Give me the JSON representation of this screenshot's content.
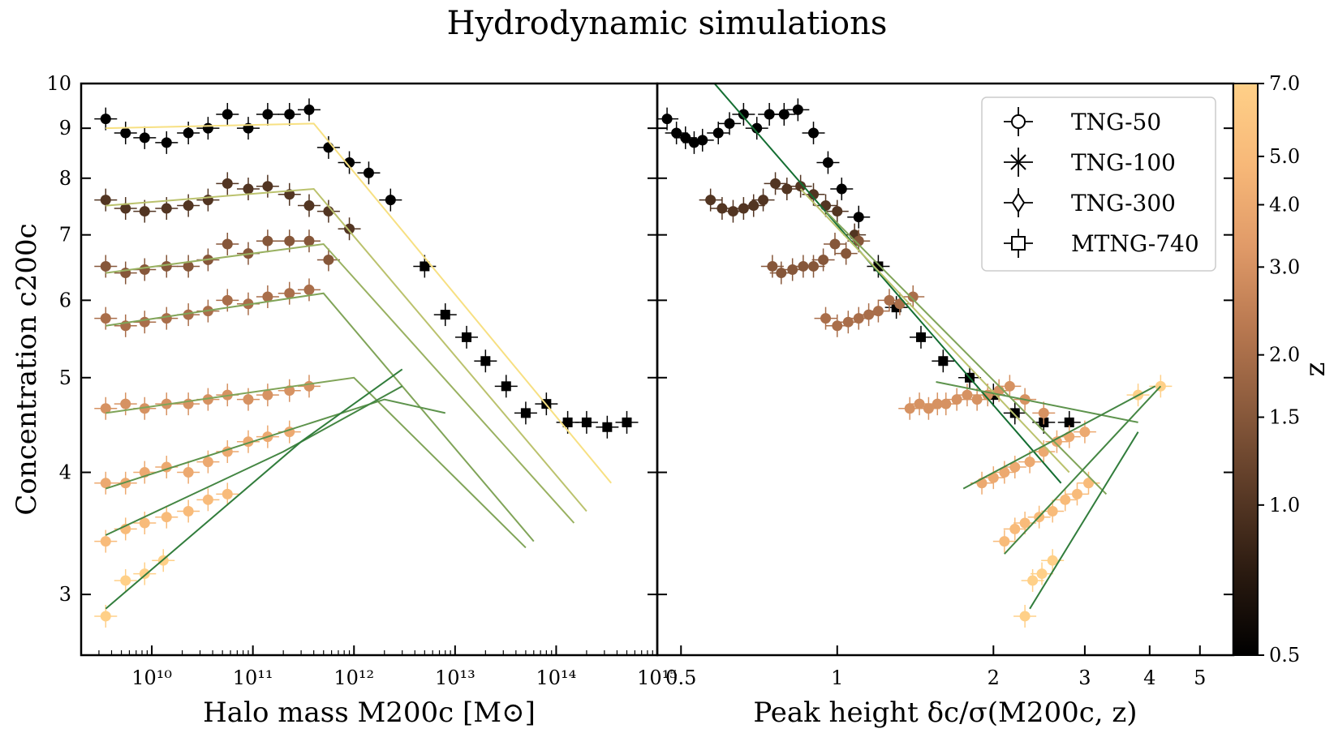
{
  "figure": {
    "title": "Hydrodynamic simulations",
    "colormap_stops": [
      "#000000",
      "#2a1a10",
      "#5a3a26",
      "#8a5a3c",
      "#b87850",
      "#e09a68",
      "#f7b878",
      "#ffd088"
    ]
  },
  "chart_data": [
    {
      "type": "scatter",
      "panel": "left",
      "xlabel": "Halo mass  M200c [M⊙]",
      "ylabel": "Concentration  c200c",
      "xscale": "log",
      "yscale": "log",
      "xlim": [
        2000000000.0,
        1000000000000000.0
      ],
      "ylim": [
        2.6,
        10
      ],
      "xtick_labels": [
        "10¹⁰",
        "10¹¹",
        "10¹²",
        "10¹³",
        "10¹⁴",
        "10¹⁵"
      ],
      "ytick_labels": [
        "3",
        "4",
        "5",
        "6",
        "7",
        "8",
        "9",
        "10"
      ],
      "series": [
        {
          "z": 0.5,
          "marker": "circle",
          "x": [
            3500000000.0,
            5500000000.0,
            8500000000.0,
            14000000000.0,
            23000000000.0,
            36000000000.0,
            56000000000.0,
            90000000000.0,
            140000000000.0,
            230000000000.0,
            360000000000.0,
            560000000000.0,
            900000000000.0,
            1400000000000.0,
            2300000000000.0
          ],
          "y": [
            9.2,
            8.9,
            8.8,
            8.7,
            8.9,
            9.0,
            9.3,
            9.0,
            9.3,
            9.3,
            9.4,
            8.6,
            8.3,
            8.1,
            7.6
          ]
        },
        {
          "z": 0.5,
          "marker": "square",
          "x": [
            5000000000000.0,
            8000000000000.0,
            13000000000000.0,
            20000000000000.0,
            32000000000000.0,
            50000000000000.0,
            80000000000000.0,
            130000000000000.0,
            200000000000000.0,
            320000000000000.0,
            500000000000000.0
          ],
          "y": [
            6.5,
            5.8,
            5.5,
            5.2,
            4.9,
            4.6,
            4.7,
            4.5,
            4.5,
            4.45,
            4.5
          ]
        },
        {
          "z": 1.0,
          "marker": "circle",
          "x": [
            3500000000.0,
            5500000000.0,
            8500000000.0,
            14000000000.0,
            23000000000.0,
            36000000000.0,
            56000000000.0,
            90000000000.0,
            140000000000.0,
            230000000000.0,
            360000000000.0,
            560000000000.0,
            900000000000.0
          ],
          "y": [
            7.6,
            7.45,
            7.4,
            7.45,
            7.5,
            7.6,
            7.9,
            7.8,
            7.85,
            7.7,
            7.5,
            7.4,
            7.1
          ]
        },
        {
          "z": 1.5,
          "marker": "circle",
          "x": [
            3500000000.0,
            5500000000.0,
            8500000000.0,
            14000000000.0,
            23000000000.0,
            36000000000.0,
            56000000000.0,
            90000000000.0,
            140000000000.0,
            230000000000.0,
            360000000000.0,
            560000000000.0
          ],
          "y": [
            6.5,
            6.4,
            6.45,
            6.5,
            6.5,
            6.6,
            6.85,
            6.7,
            6.9,
            6.9,
            6.9,
            6.6
          ]
        },
        {
          "z": 2.0,
          "marker": "circle",
          "x": [
            3500000000.0,
            5500000000.0,
            8500000000.0,
            14000000000.0,
            23000000000.0,
            36000000000.0,
            56000000000.0,
            90000000000.0,
            140000000000.0,
            230000000000.0,
            360000000000.0
          ],
          "y": [
            5.75,
            5.65,
            5.7,
            5.75,
            5.8,
            5.85,
            6.0,
            5.95,
            6.05,
            6.1,
            6.15
          ]
        },
        {
          "z": 3.0,
          "marker": "circle",
          "x": [
            3500000000.0,
            5500000000.0,
            8500000000.0,
            14000000000.0,
            23000000000.0,
            36000000000.0,
            56000000000.0,
            90000000000.0,
            140000000000.0,
            230000000000.0,
            360000000000.0
          ],
          "y": [
            4.65,
            4.7,
            4.65,
            4.7,
            4.7,
            4.75,
            4.8,
            4.75,
            4.8,
            4.85,
            4.9
          ]
        },
        {
          "z": 4.0,
          "marker": "circle",
          "x": [
            3500000000.0,
            5500000000.0,
            8500000000.0,
            14000000000.0,
            23000000000.0,
            36000000000.0,
            56000000000.0,
            90000000000.0,
            140000000000.0,
            230000000000.0
          ],
          "y": [
            3.9,
            3.9,
            4.0,
            4.05,
            4.0,
            4.1,
            4.2,
            4.3,
            4.35,
            4.4
          ]
        },
        {
          "z": 5.0,
          "marker": "circle",
          "x": [
            3500000000.0,
            5500000000.0,
            8500000000.0,
            14000000000.0,
            23000000000.0,
            36000000000.0,
            56000000000.0
          ],
          "y": [
            3.4,
            3.5,
            3.55,
            3.6,
            3.65,
            3.75,
            3.8
          ]
        },
        {
          "z": 7.0,
          "marker": "circle",
          "x": [
            3500000000.0,
            5500000000.0,
            8500000000.0,
            13000000000.0
          ],
          "y": [
            2.85,
            3.1,
            3.15,
            3.25
          ]
        }
      ],
      "model_lines": [
        {
          "z": 0.5,
          "x": [
            3500000000.0,
            400000000000.0,
            350000000000000.0
          ],
          "y": [
            9.0,
            9.1,
            3.9
          ]
        },
        {
          "z": 1.0,
          "x": [
            3500000000.0,
            400000000000.0,
            200000000000000.0
          ],
          "y": [
            7.5,
            7.8,
            3.65
          ]
        },
        {
          "z": 1.5,
          "x": [
            3500000000.0,
            500000000000.0,
            150000000000000.0
          ],
          "y": [
            6.4,
            6.85,
            3.55
          ]
        },
        {
          "z": 2.0,
          "x": [
            3500000000.0,
            500000000000.0,
            60000000000000.0
          ],
          "y": [
            5.65,
            6.1,
            3.4
          ]
        },
        {
          "z": 2.0,
          "x": [
            3500000000.0,
            1000000000000.0,
            50000000000000.0
          ],
          "y": [
            4.6,
            5.0,
            3.35
          ]
        },
        {
          "z": 3.0,
          "x": [
            3500000000.0,
            2000000000000.0,
            8000000000000.0
          ],
          "y": [
            3.85,
            4.75,
            4.6
          ]
        },
        {
          "z": 4.0,
          "x": [
            3500000000.0,
            200000000000.0,
            3000000000000.0
          ],
          "y": [
            3.45,
            4.2,
            4.9
          ]
        },
        {
          "z": 5.0,
          "x": [
            3500000000.0,
            300000000000.0,
            3000000000000.0
          ],
          "y": [
            2.9,
            4.3,
            5.1
          ]
        }
      ]
    },
    {
      "type": "scatter",
      "panel": "right",
      "xlabel": "Peak height  δc/σ(M200c, z)",
      "xscale": "log",
      "yscale": "log",
      "xlim": [
        0.45,
        5.8
      ],
      "ylim": [
        2.6,
        10
      ],
      "xtick_labels": [
        "0.5",
        "1",
        "2",
        "3",
        "4",
        "5"
      ],
      "legend": {
        "position": "top-right",
        "entries": [
          "TNG-50",
          "TNG-100",
          "TNG-300",
          "MTNG-740"
        ]
      },
      "series": [
        {
          "z": 0.5,
          "marker": "circle",
          "x": [
            0.47,
            0.49,
            0.51,
            0.53,
            0.55,
            0.59,
            0.62,
            0.66,
            0.7,
            0.74,
            0.79,
            0.84,
            0.9,
            0.96,
            1.02,
            1.1
          ],
          "y": [
            9.2,
            8.9,
            8.8,
            8.7,
            8.75,
            8.9,
            9.1,
            9.3,
            9.0,
            9.3,
            9.3,
            9.4,
            8.9,
            8.3,
            7.8,
            7.3
          ]
        },
        {
          "z": 0.5,
          "marker": "square",
          "x": [
            1.2,
            1.3,
            1.45,
            1.6,
            1.8,
            2.0,
            2.2,
            2.5,
            2.8
          ],
          "y": [
            6.5,
            5.9,
            5.5,
            5.2,
            5.0,
            4.8,
            4.6,
            4.5,
            4.5
          ]
        },
        {
          "z": 1.0,
          "marker": "circle",
          "x": [
            0.57,
            0.6,
            0.63,
            0.66,
            0.69,
            0.72,
            0.76,
            0.8,
            0.85,
            0.9,
            0.95,
            1.0,
            1.08
          ],
          "y": [
            7.6,
            7.45,
            7.4,
            7.45,
            7.5,
            7.6,
            7.9,
            7.8,
            7.85,
            7.7,
            7.5,
            7.4,
            7.0
          ]
        },
        {
          "z": 1.5,
          "marker": "circle",
          "x": [
            0.75,
            0.78,
            0.82,
            0.86,
            0.9,
            0.94,
            0.99,
            1.04,
            1.1
          ],
          "y": [
            6.5,
            6.4,
            6.45,
            6.5,
            6.5,
            6.6,
            6.85,
            6.7,
            6.9
          ]
        },
        {
          "z": 2.0,
          "marker": "circle",
          "x": [
            0.95,
            1.0,
            1.05,
            1.1,
            1.15,
            1.2,
            1.26,
            1.32,
            1.4
          ],
          "y": [
            5.75,
            5.65,
            5.7,
            5.75,
            5.8,
            5.85,
            6.0,
            5.95,
            6.05
          ]
        },
        {
          "z": 3.0,
          "marker": "circle",
          "x": [
            1.38,
            1.44,
            1.5,
            1.56,
            1.62,
            1.7,
            1.78,
            1.86,
            1.95,
            2.05,
            2.15,
            2.3,
            2.5
          ],
          "y": [
            4.65,
            4.7,
            4.65,
            4.7,
            4.7,
            4.75,
            4.8,
            4.75,
            4.8,
            4.85,
            4.9,
            4.75,
            4.6
          ]
        },
        {
          "z": 4.0,
          "marker": "circle",
          "x": [
            1.9,
            2.0,
            2.1,
            2.2,
            2.35,
            2.5,
            2.65,
            2.8,
            3.0
          ],
          "y": [
            3.9,
            3.95,
            4.0,
            4.05,
            4.1,
            4.2,
            4.3,
            4.35,
            4.4
          ]
        },
        {
          "z": 5.0,
          "marker": "circle",
          "x": [
            2.1,
            2.2,
            2.3,
            2.45,
            2.6,
            2.75,
            2.9,
            3.05
          ],
          "y": [
            3.4,
            3.5,
            3.55,
            3.6,
            3.65,
            3.75,
            3.8,
            3.9
          ]
        },
        {
          "z": 7.0,
          "marker": "circle",
          "x": [
            2.3,
            2.38,
            2.48,
            2.6,
            3.8,
            4.2
          ],
          "y": [
            2.85,
            3.1,
            3.15,
            3.25,
            4.8,
            4.9
          ]
        }
      ],
      "model_lines": [
        {
          "z": 7.0,
          "x": [
            0.58,
            2.7
          ],
          "y": [
            10.0,
            3.9
          ]
        },
        {
          "z": 2.0,
          "x": [
            0.95,
            3.3
          ],
          "y": [
            7.4,
            3.8
          ]
        },
        {
          "z": 1.0,
          "x": [
            0.85,
            2.8
          ],
          "y": [
            7.8,
            4.0
          ]
        },
        {
          "z": 3.0,
          "x": [
            1.55,
            3.8
          ],
          "y": [
            4.95,
            4.5
          ]
        },
        {
          "z": 4.0,
          "x": [
            1.75,
            4.1
          ],
          "y": [
            3.85,
            4.9
          ]
        },
        {
          "z": 4.0,
          "x": [
            2.1,
            4.2
          ],
          "y": [
            3.3,
            4.9
          ]
        },
        {
          "z": 5.0,
          "x": [
            2.35,
            3.8
          ],
          "y": [
            2.9,
            4.4
          ]
        }
      ]
    },
    {
      "type": "colorbar",
      "label": "z",
      "scale": "log",
      "range": [
        0.5,
        7.0
      ],
      "tick_labels": [
        "0.5",
        "1.0",
        "1.5",
        "2.0",
        "3.0",
        "4.0",
        "5.0",
        "7.0"
      ],
      "tick_values": [
        0.5,
        1.0,
        1.5,
        2.0,
        3.0,
        4.0,
        5.0,
        7.0
      ]
    }
  ]
}
